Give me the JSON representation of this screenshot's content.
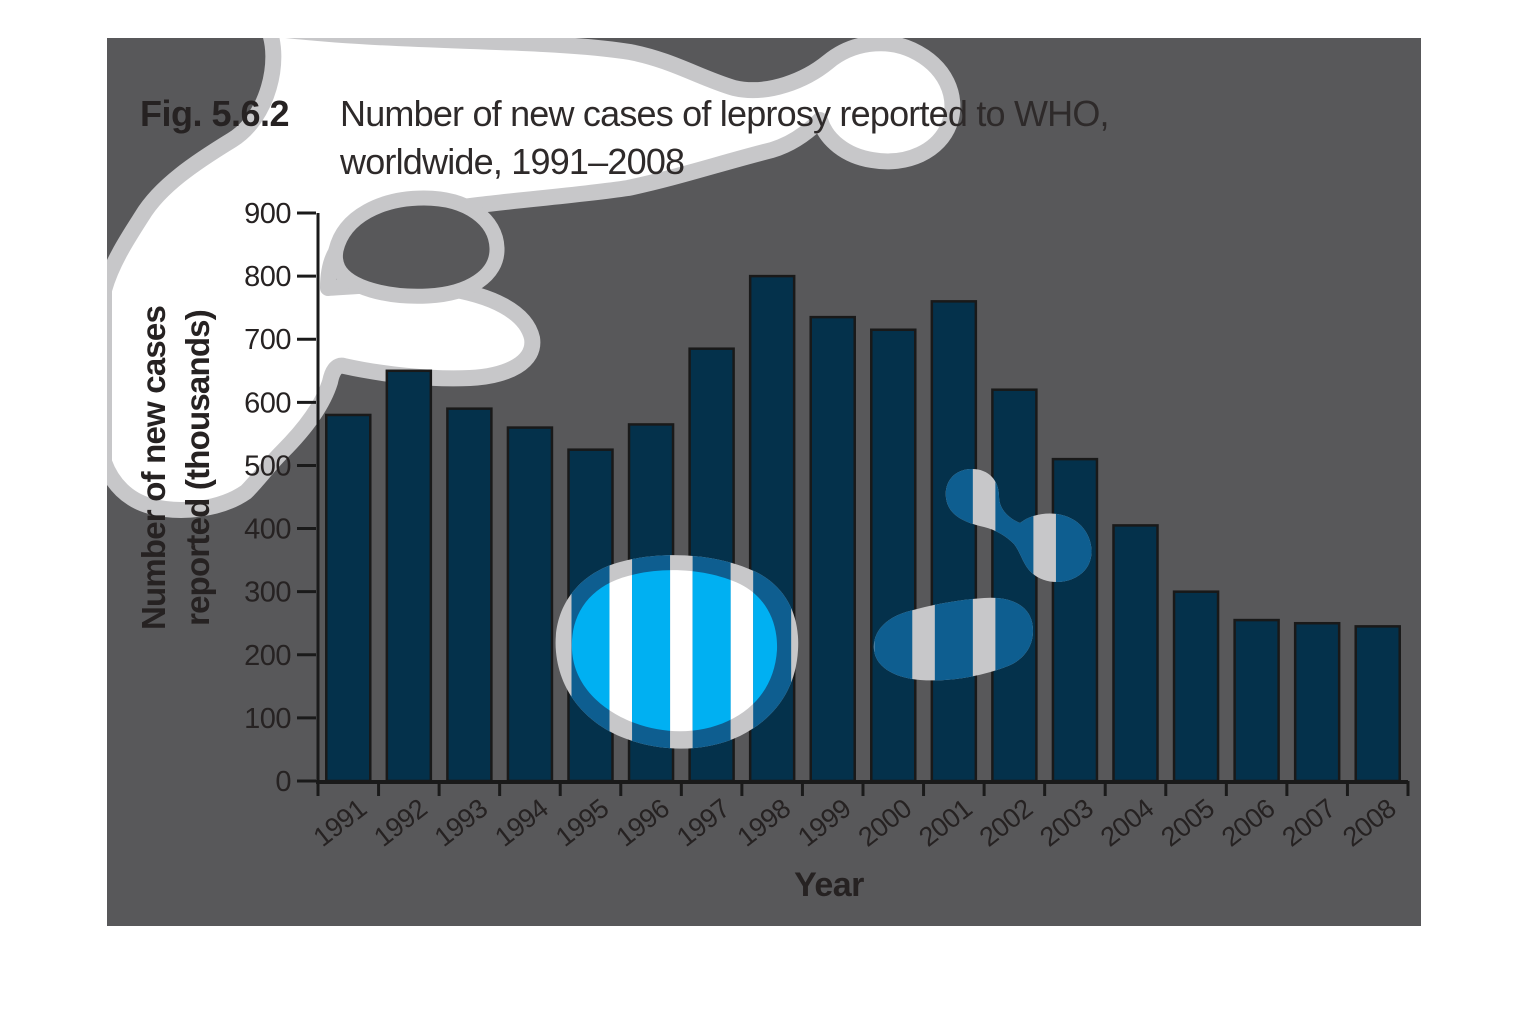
{
  "figure": {
    "label": "Fig. 5.6.2",
    "title_line1": "Number of new cases of leprosy reported to WHO,",
    "title_line2": "worldwide, 1991–2008"
  },
  "chart_data": {
    "type": "bar",
    "title": "Number of new cases of leprosy reported to WHO, worldwide, 1991–2008",
    "categories": [
      "1991",
      "1992",
      "1993",
      "1994",
      "1995",
      "1996",
      "1997",
      "1998",
      "1999",
      "2000",
      "2001",
      "2002",
      "2003",
      "2004",
      "2005",
      "2006",
      "2007",
      "2008"
    ],
    "values": [
      580,
      650,
      590,
      560,
      525,
      565,
      685,
      800,
      735,
      715,
      760,
      620,
      510,
      405,
      300,
      255,
      250,
      245
    ],
    "unit": "thousands",
    "xlabel": "Year",
    "ylabel_line1": "Number of new cases",
    "ylabel_line2": "reported (thousands)",
    "ylim": [
      0,
      900
    ],
    "ytick_step": 100,
    "grid": false,
    "legend": false
  },
  "colors": {
    "page_bg": "#FFFFFF",
    "panel": "#58585A",
    "bar_fill": "#04314B",
    "bar_stroke": "#191919",
    "axis": "#1A1A1A",
    "text": "#262222",
    "accent": "#29A8E0",
    "cloud_white": "#FFFFFF",
    "cloud_ring": "#C7C7C9",
    "blob_blue": "#0E5E90",
    "blob_cyan": "#00B0F2"
  }
}
